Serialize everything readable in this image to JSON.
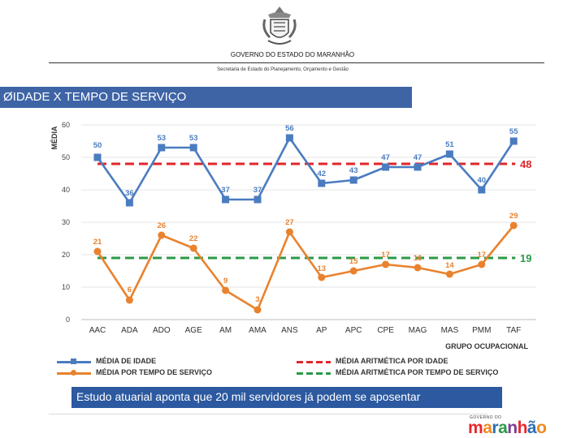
{
  "header": {
    "government_title": "GOVERNO DO ESTADO DO MARANHÃO",
    "secretaria": "Secretaria de Estado do Planejamento, Orçamento e Gestão",
    "section_marker": "Ø",
    "section_title": "IDADE X TEMPO DE SERVIÇO"
  },
  "chart_data": {
    "type": "line",
    "ylabel": "MÉDIA",
    "xlabel": "GRUPO OCUPACIONAL",
    "ylim": [
      0,
      60
    ],
    "yticks": [
      "60",
      "50",
      "40",
      "30",
      "20",
      "10",
      "0"
    ],
    "categories": [
      "AAC",
      "ADA",
      "ADO",
      "AGE",
      "AM",
      "AMA",
      "ANS",
      "AP",
      "APC",
      "CPE",
      "MAG",
      "MAS",
      "PMM",
      "TAF"
    ],
    "series": [
      {
        "name": "MÉDIA DE IDADE",
        "color": "#4a7cc0",
        "values": [
          50,
          36,
          53,
          53,
          37,
          37,
          56,
          42,
          43,
          47,
          47,
          51,
          40,
          55
        ]
      },
      {
        "name": "MÉDIA POR TEMPO DE SERVIÇO",
        "color": "#e9822e",
        "values": [
          21,
          6,
          26,
          22,
          9,
          3,
          27,
          13,
          15,
          17,
          16,
          14,
          17,
          29
        ]
      }
    ],
    "reference_lines": [
      {
        "name": "MÉDIA ARITMÉTICA POR IDADE",
        "value": 48,
        "label": "48",
        "color": "#e0262a"
      },
      {
        "name": "MÉDIA ARITMÉTICA POR TEMPO DE SERVIÇO",
        "value": 19,
        "label": "19",
        "color": "#2a9a47"
      }
    ],
    "legend_position": "bottom"
  },
  "banner": {
    "text": "Estudo atuarial aponta que 20 mil servidores já podem se aposentar"
  },
  "footer": {
    "logo_small": "GOVERNO DO",
    "logo_text": "maranhão"
  },
  "colors": {
    "section_bar": "#3e64a6",
    "banner": "#2c59a0",
    "logo_letters": [
      "#e9282c",
      "#f08a1e",
      "#2c6fb3",
      "#2a9a47",
      "#7c3b95",
      "#e9282c",
      "#2c6fb3",
      "#f08a1e"
    ]
  }
}
